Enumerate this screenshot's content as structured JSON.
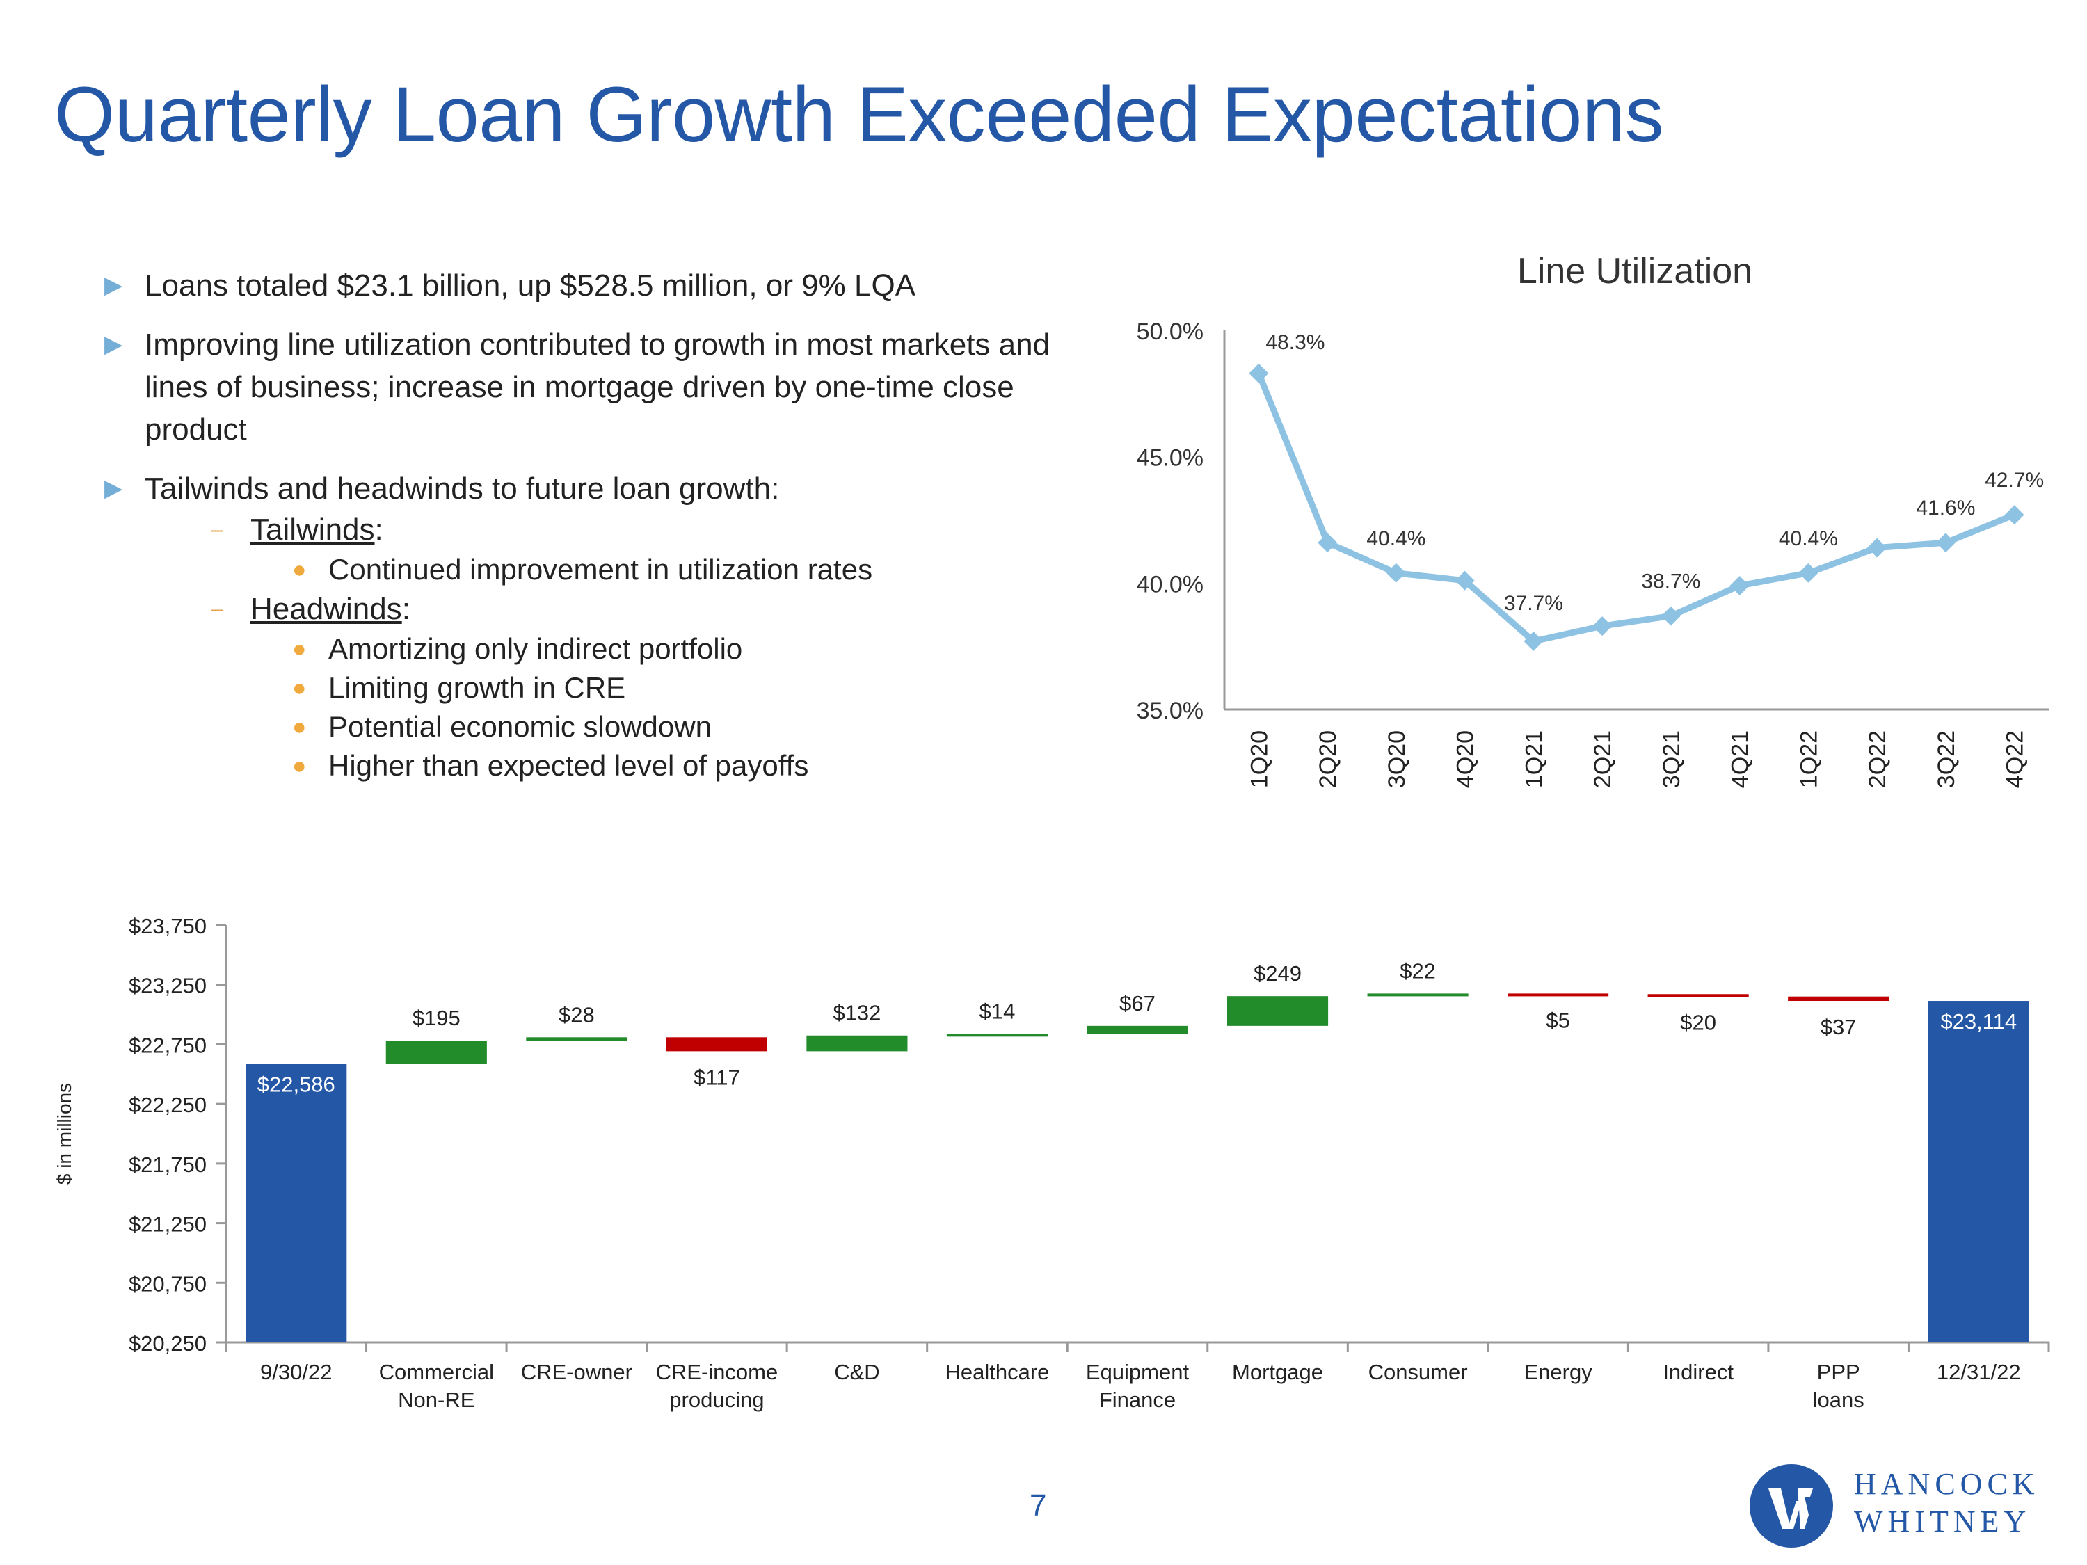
{
  "title": "Quarterly Loan Growth Exceeded Expectations",
  "bullets": [
    "Loans totaled $23.1 billion, up $528.5 million, or 9% LQA",
    "Improving line utilization contributed to growth in most markets and lines of business; increase in mortgage driven by one-time close product",
    "Tailwinds and headwinds to future loan growth:"
  ],
  "tailwinds": {
    "label": "Tailwinds",
    "items": [
      "Continued improvement in utilization rates"
    ]
  },
  "headwinds": {
    "label": "Headwinds",
    "items": [
      "Amortizing only indirect portfolio",
      "Limiting growth in CRE",
      "Potential economic slowdown",
      "Higher than expected level of payoffs"
    ]
  },
  "colors": {
    "title": "#2458a6",
    "line": "#8ec2e3",
    "increase": "#228b2a",
    "decrease": "#c00000",
    "total": "#2458a6"
  },
  "chart_data": [
    {
      "type": "line",
      "title": "Line Utilization",
      "categories": [
        "1Q20",
        "2Q20",
        "3Q20",
        "4Q20",
        "1Q21",
        "2Q21",
        "3Q21",
        "4Q21",
        "1Q22",
        "2Q22",
        "3Q22",
        "4Q22"
      ],
      "values": [
        48.3,
        41.6,
        40.4,
        40.1,
        37.7,
        38.3,
        38.7,
        39.9,
        40.4,
        41.4,
        41.6,
        42.7
      ],
      "labels": [
        "48.3%",
        "",
        "40.4%",
        "",
        "37.7%",
        "",
        "38.7%",
        "",
        "40.4%",
        "",
        "41.6%",
        "42.7%"
      ],
      "ylim": [
        35,
        50
      ],
      "yticks": [
        "35.0%",
        "40.0%",
        "45.0%",
        "50.0%"
      ]
    },
    {
      "type": "waterfall",
      "ylabel": "$ in millions",
      "ylim": [
        20250,
        23750
      ],
      "yticks": [
        "$20,250",
        "$20,750",
        "$21,250",
        "$21,750",
        "$22,250",
        "$22,750",
        "$23,250",
        "$23,750"
      ],
      "categories": [
        [
          "9/30/22"
        ],
        [
          "Commercial",
          "Non-RE"
        ],
        [
          "CRE-owner"
        ],
        [
          "CRE-income",
          "producing"
        ],
        [
          "C&D"
        ],
        [
          "Healthcare"
        ],
        [
          "Equipment",
          "Finance"
        ],
        [
          "Mortgage"
        ],
        [
          "Consumer"
        ],
        [
          "Energy"
        ],
        [
          "Indirect"
        ],
        [
          "PPP",
          "loans"
        ],
        [
          "12/31/22"
        ]
      ],
      "kinds": [
        "total",
        "up",
        "up",
        "down",
        "up",
        "up",
        "up",
        "up",
        "up",
        "down",
        "down",
        "down",
        "total"
      ],
      "values": [
        22586,
        195,
        28,
        117,
        132,
        14,
        67,
        249,
        22,
        5,
        20,
        37,
        23114
      ],
      "labels": [
        "$22,586",
        "$195",
        "$28",
        "$117",
        "$132",
        "$14",
        "$67",
        "$249",
        "$22",
        "$5",
        "$20",
        "$37",
        "$23,114"
      ]
    }
  ],
  "page_number": "7",
  "logo": {
    "line1": "HANCOCK",
    "line2": "WHITNEY",
    "icon": "hancock-whitney-logo-icon"
  }
}
